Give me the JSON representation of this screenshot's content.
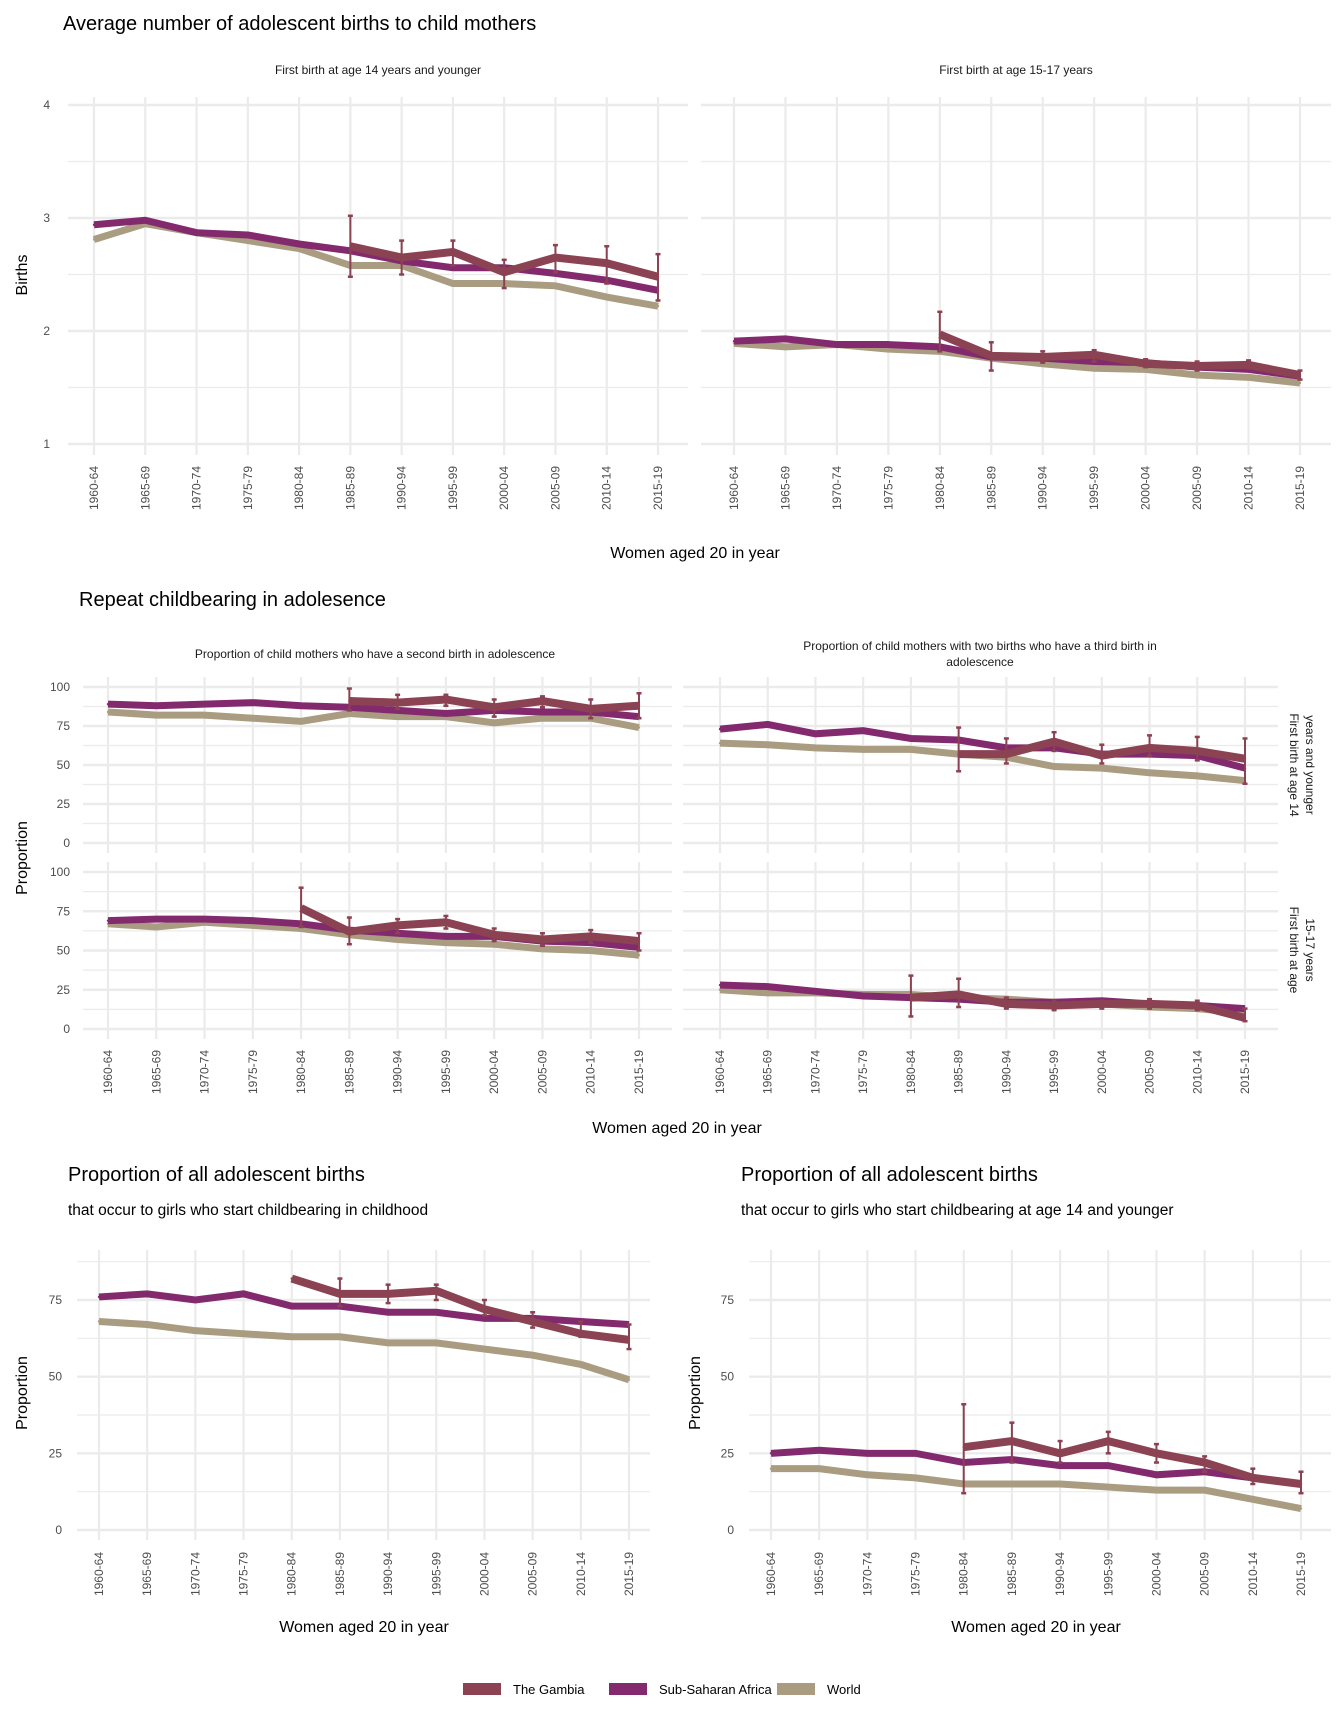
{
  "colors": {
    "The Gambia": "#8b4252",
    "Sub-Saharan Africa": "#832a6e",
    "World": "#a99c80",
    "grid": "#ebebeb"
  },
  "section1": {
    "title": "Average number of adolescent births to child mothers",
    "ylabel": "Births",
    "xlabel": "Women aged 20 in year"
  },
  "section2": {
    "title": "Repeat childbearing in adolesence",
    "ylabel": "Proportion",
    "xlabel": "Women aged 20 in year",
    "col_titles": [
      "Proportion of child mothers who have a second birth in adolescence",
      "Proportion of child mothers with two births who have a third birth in",
      "adolescence"
    ],
    "row_labels": [
      [
        "First birth at age 14",
        "years and younger"
      ],
      [
        "First birth at age",
        "15-17 years"
      ]
    ]
  },
  "section3": {
    "left": {
      "title": "Proportion of all adolescent births",
      "subtitle": "that occur to girls who start childbearing in childhood",
      "ylabel": "Proportion",
      "xlabel": "Women aged 20 in year"
    },
    "right": {
      "title": "Proportion of all adolescent births",
      "subtitle": "that occur to girls who start childbearing at age 14 and younger",
      "ylabel": "Proportion",
      "xlabel": "Women aged 20 in year"
    }
  },
  "legend": [
    "The Gambia",
    "Sub-Saharan Africa",
    "World"
  ],
  "chart_data": {
    "type": "line",
    "categories": [
      "1960-64",
      "1965-69",
      "1970-74",
      "1975-79",
      "1980-84",
      "1985-89",
      "1990-94",
      "1995-99",
      "2000-04",
      "2005-09",
      "2010-14",
      "2015-19"
    ],
    "panels": [
      {
        "id": "births-14",
        "strip": "First birth at age 14 years and younger",
        "yticks": [
          "1",
          "2",
          "3",
          "4"
        ],
        "ylim": [
          1,
          4
        ],
        "series": [
          {
            "name": "The Gambia",
            "values": [
              null,
              null,
              null,
              null,
              null,
              2.75,
              2.65,
              2.7,
              2.52,
              2.65,
              2.6,
              2.48
            ],
            "errors": [
              null,
              null,
              null,
              null,
              null,
              [
                2.48,
                3.02
              ],
              [
                2.5,
                2.8
              ],
              [
                2.58,
                2.8
              ],
              [
                2.38,
                2.63
              ],
              [
                2.52,
                2.76
              ],
              [
                2.42,
                2.75
              ],
              [
                2.27,
                2.68
              ]
            ]
          },
          {
            "name": "Sub-Saharan Africa",
            "values": [
              2.94,
              2.98,
              2.87,
              2.85,
              2.77,
              2.71,
              2.62,
              2.56,
              2.56,
              2.51,
              2.45,
              2.36
            ]
          },
          {
            "name": "World",
            "values": [
              2.81,
              2.95,
              2.87,
              2.8,
              2.73,
              2.58,
              2.58,
              2.42,
              2.42,
              2.4,
              2.3,
              2.22
            ]
          }
        ]
      },
      {
        "id": "births-15-17",
        "strip": "First birth at age 15-17 years",
        "ylim": [
          1,
          4
        ],
        "series": [
          {
            "name": "The Gambia",
            "values": [
              null,
              null,
              null,
              null,
              1.97,
              1.78,
              1.77,
              1.79,
              1.71,
              1.69,
              1.7,
              1.61
            ],
            "errors": [
              null,
              null,
              null,
              null,
              [
                1.82,
                2.17
              ],
              [
                1.65,
                1.9
              ],
              [
                1.72,
                1.82
              ],
              [
                1.73,
                1.83
              ],
              [
                1.68,
                1.75
              ],
              [
                1.65,
                1.73
              ],
              [
                1.67,
                1.74
              ],
              [
                1.57,
                1.65
              ]
            ]
          },
          {
            "name": "Sub-Saharan Africa",
            "values": [
              1.91,
              1.93,
              1.88,
              1.88,
              1.86,
              1.77,
              1.76,
              1.73,
              1.72,
              1.68,
              1.66,
              1.6
            ]
          },
          {
            "name": "World",
            "values": [
              1.89,
              1.86,
              1.88,
              1.84,
              1.82,
              1.76,
              1.71,
              1.67,
              1.66,
              1.61,
              1.59,
              1.54
            ]
          }
        ]
      },
      {
        "id": "second-14",
        "yticks": [
          "0",
          "25",
          "50",
          "75",
          "100"
        ],
        "ylim": [
          0,
          100
        ],
        "series": [
          {
            "name": "The Gambia",
            "values": [
              null,
              null,
              null,
              null,
              null,
              91,
              90,
              92,
              87,
              91,
              86,
              88
            ],
            "errors": [
              null,
              null,
              null,
              null,
              null,
              [
                85,
                99
              ],
              [
                86,
                95
              ],
              [
                88,
                95
              ],
              [
                81,
                92
              ],
              [
                87,
                94
              ],
              [
                80,
                92
              ],
              [
                80,
                96
              ]
            ]
          },
          {
            "name": "Sub-Saharan Africa",
            "values": [
              89,
              88,
              89,
              90,
              88,
              87,
              85,
              83,
              85,
              84,
              84,
              81
            ]
          },
          {
            "name": "World",
            "values": [
              84,
              82,
              82,
              80,
              78,
              83,
              81,
              81,
              77,
              80,
              80,
              74
            ]
          }
        ]
      },
      {
        "id": "third-14",
        "ylim": [
          0,
          100
        ],
        "series": [
          {
            "name": "The Gambia",
            "values": [
              null,
              null,
              null,
              null,
              null,
              57,
              57,
              65,
              56,
              61,
              59,
              54
            ],
            "errors": [
              null,
              null,
              null,
              null,
              null,
              [
                46,
                74
              ],
              [
                51,
                67
              ],
              [
                59,
                71
              ],
              [
                51,
                63
              ],
              [
                56,
                69
              ],
              [
                53,
                68
              ],
              [
                38,
                67
              ]
            ]
          },
          {
            "name": "Sub-Saharan Africa",
            "values": [
              73,
              76,
              70,
              72,
              67,
              66,
              61,
              61,
              57,
              57,
              56,
              48
            ]
          },
          {
            "name": "World",
            "values": [
              64,
              63,
              61,
              60,
              60,
              57,
              55,
              49,
              48,
              45,
              43,
              40
            ]
          }
        ]
      },
      {
        "id": "second-15-17",
        "yticks": [
          "0",
          "25",
          "50",
          "75",
          "100"
        ],
        "ylim": [
          0,
          100
        ],
        "series": [
          {
            "name": "The Gambia",
            "values": [
              null,
              null,
              null,
              null,
              77,
              62,
              66,
              68,
              60,
              57,
              59,
              56
            ],
            "errors": [
              null,
              null,
              null,
              null,
              [
                65,
                90
              ],
              [
                54,
                71
              ],
              [
                61,
                70
              ],
              [
                64,
                72
              ],
              [
                56,
                64
              ],
              [
                53,
                61
              ],
              [
                55,
                63
              ],
              [
                50,
                61
              ]
            ]
          },
          {
            "name": "Sub-Saharan Africa",
            "values": [
              69,
              70,
              70,
              69,
              67,
              63,
              61,
              59,
              59,
              56,
              55,
              52
            ]
          },
          {
            "name": "World",
            "values": [
              67,
              65,
              68,
              66,
              64,
              60,
              57,
              55,
              54,
              51,
              50,
              47
            ]
          }
        ]
      },
      {
        "id": "third-15-17",
        "ylim": [
          0,
          100
        ],
        "series": [
          {
            "name": "The Gambia",
            "values": [
              null,
              null,
              null,
              null,
              20,
              22,
              16,
              15,
              16,
              16,
              15,
              7
            ],
            "errors": [
              null,
              null,
              null,
              null,
              [
                8,
                34
              ],
              [
                14,
                32
              ],
              [
                13,
                20
              ],
              [
                12,
                18
              ],
              [
                13,
                18
              ],
              [
                13,
                19
              ],
              [
                12,
                18
              ],
              [
                5,
                13
              ]
            ]
          },
          {
            "name": "Sub-Saharan Africa",
            "values": [
              28,
              27,
              24,
              21,
              20,
              19,
              17,
              17,
              18,
              16,
              15,
              13
            ]
          },
          {
            "name": "World",
            "values": [
              25,
              23,
              23,
              22,
              22,
              20,
              19,
              17,
              16,
              14,
              13,
              10
            ]
          }
        ]
      },
      {
        "id": "share-childhood",
        "yticks": [
          "0",
          "25",
          "50",
          "75"
        ],
        "ylim": [
          0,
          75
        ],
        "series": [
          {
            "name": "The Gambia",
            "values": [
              null,
              null,
              null,
              null,
              82,
              77,
              77,
              78,
              72,
              68,
              64,
              62
            ],
            "errors": [
              null,
              null,
              null,
              null,
              null,
              [
                73,
                82
              ],
              [
                74,
                80
              ],
              [
                75,
                80
              ],
              [
                70,
                75
              ],
              [
                66,
                71
              ],
              [
                63,
                68
              ],
              [
                59,
                67
              ]
            ]
          },
          {
            "name": "Sub-Saharan Africa",
            "values": [
              76,
              77,
              75,
              77,
              73,
              73,
              71,
              71,
              69,
              69,
              68,
              67
            ]
          },
          {
            "name": "World",
            "values": [
              68,
              67,
              65,
              64,
              63,
              63,
              61,
              61,
              59,
              57,
              54,
              49
            ]
          }
        ]
      },
      {
        "id": "share-14",
        "yticks": [
          "0",
          "25",
          "50",
          "75"
        ],
        "ylim": [
          0,
          75
        ],
        "series": [
          {
            "name": "The Gambia",
            "values": [
              null,
              null,
              null,
              null,
              27,
              29,
              25,
              29,
              25,
              22,
              17,
              15
            ],
            "errors": [
              null,
              null,
              null,
              null,
              [
                12,
                41
              ],
              [
                22,
                35
              ],
              [
                22,
                29
              ],
              [
                25,
                32
              ],
              [
                22,
                28
              ],
              [
                19,
                24
              ],
              [
                15,
                20
              ],
              [
                12,
                19
              ]
            ]
          },
          {
            "name": "Sub-Saharan Africa",
            "values": [
              25,
              26,
              25,
              25,
              22,
              23,
              21,
              21,
              18,
              19,
              17,
              15
            ]
          },
          {
            "name": "World",
            "values": [
              20,
              20,
              18,
              17,
              15,
              15,
              15,
              14,
              13,
              13,
              10,
              7
            ]
          }
        ]
      }
    ]
  }
}
